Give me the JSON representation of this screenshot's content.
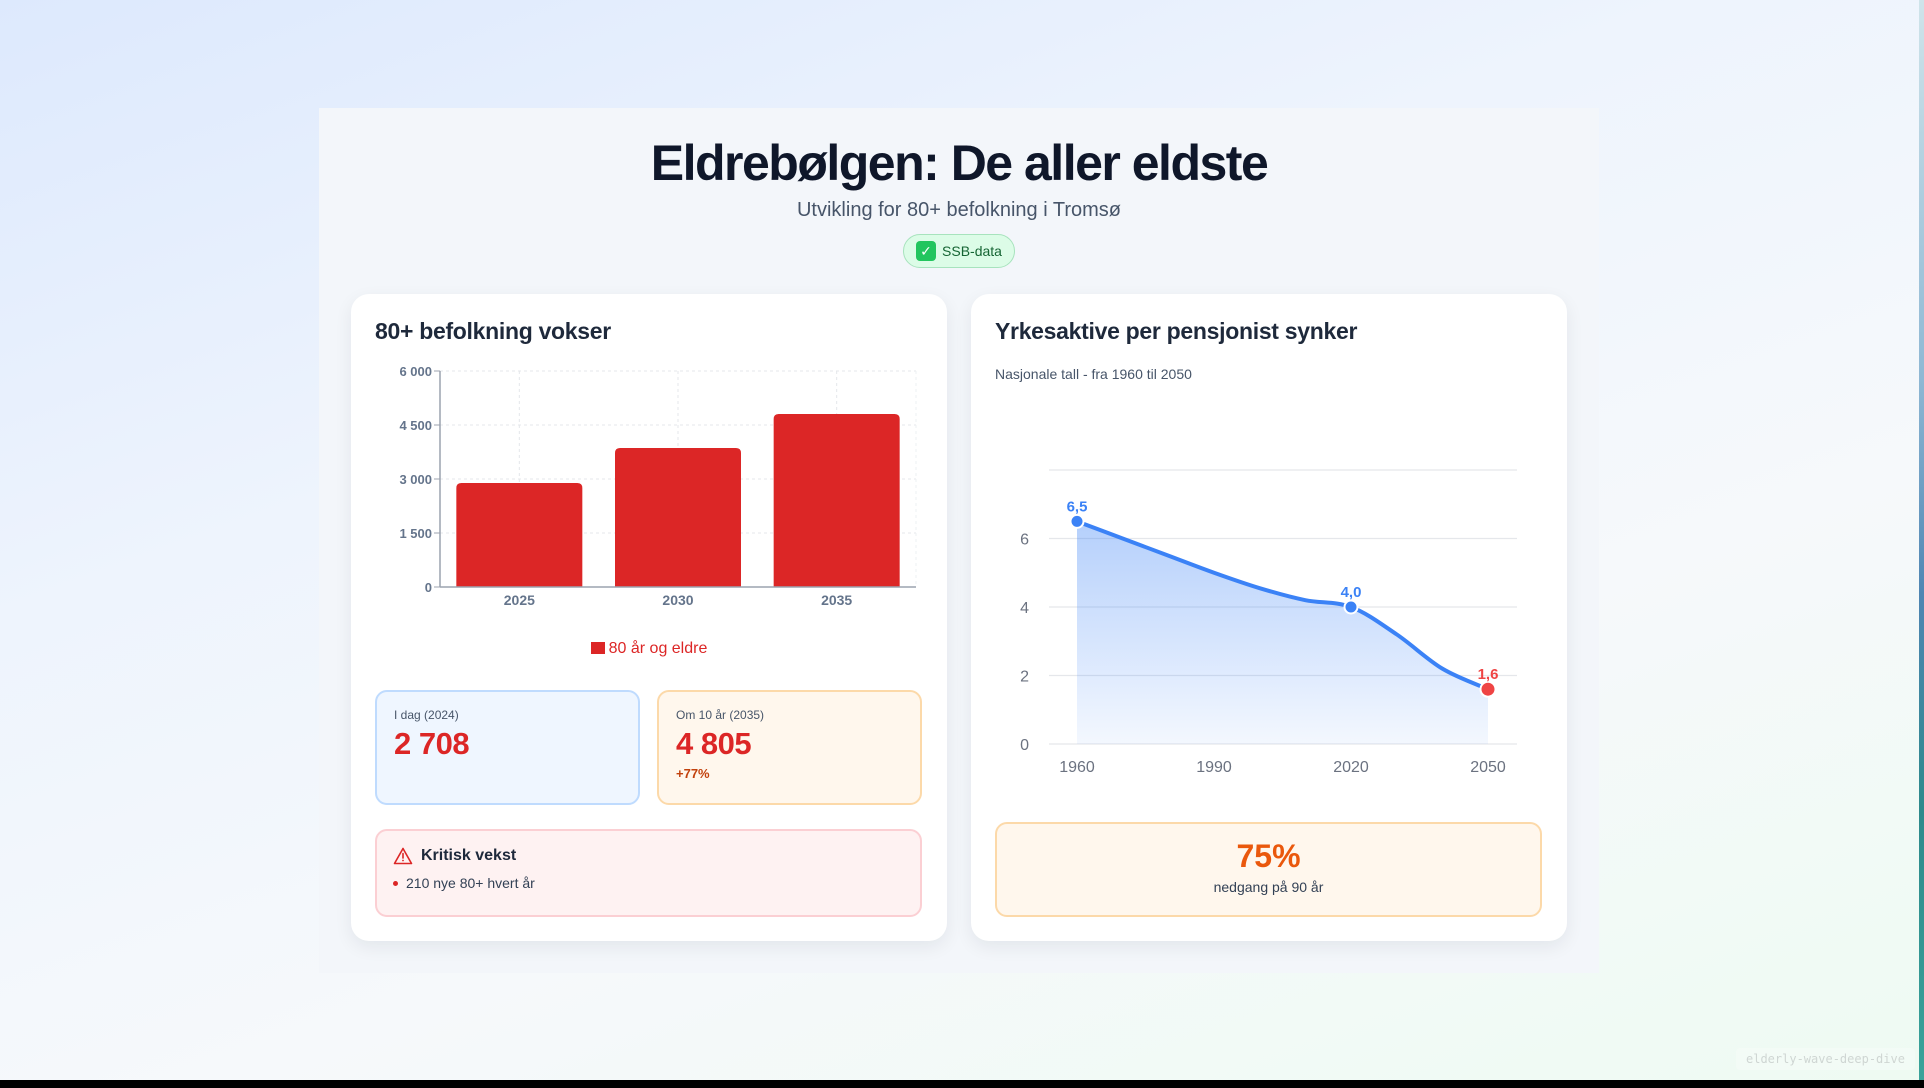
{
  "header": {
    "title": "Eldrebølgen: De aller eldste",
    "subtitle": "Utvikling for 80+ befolkning i Tromsø",
    "badge": "SSB-data",
    "badge_icon": "check-mark-icon"
  },
  "left_card": {
    "title": "80+ befolkning vokser",
    "legend": "80 år og eldre",
    "stats": [
      {
        "label": "I dag (2024)",
        "value": "2 708",
        "change": ""
      },
      {
        "label": "Om 10 år (2035)",
        "value": "4 805",
        "change": "+77%"
      }
    ],
    "alert": {
      "icon": "warning-triangle-icon",
      "title": "Kritisk vekst",
      "items": [
        "210 nye 80+ hvert år"
      ]
    }
  },
  "right_card": {
    "title": "Yrkesaktive per pensjonist synker",
    "note": "Nasjonale tall - fra 1960 til 2050",
    "summary": {
      "value": "75%",
      "label": "nedgang på 90 år"
    }
  },
  "watermark": "elderly-wave-deep-dive",
  "colors": {
    "bar": "#dc2626",
    "line": "#3b82f6",
    "highlight": "#ef4444",
    "accent_orange": "#ea580c"
  },
  "chart_data": [
    {
      "type": "bar",
      "title": "80+ befolkning vokser",
      "categories": [
        "2025",
        "2030",
        "2035"
      ],
      "series": [
        {
          "name": "80 år og eldre",
          "values": [
            2890,
            3860,
            4805
          ]
        }
      ],
      "yticks": [
        "0",
        "1 500",
        "3 000",
        "4 500",
        "6 000"
      ],
      "ylim": [
        0,
        6000
      ],
      "xlabel": "",
      "ylabel": "",
      "grid": true,
      "legend_position": "bottom"
    },
    {
      "type": "area",
      "title": "Yrkesaktive per pensjonist synker",
      "subtitle": "Nasjonale tall - fra 1960 til 2050",
      "x": [
        1960,
        1970,
        1980,
        1990,
        2000,
        2010,
        2020,
        2030,
        2040,
        2050
      ],
      "series": [
        {
          "name": "Yrkesaktive per pensjonist",
          "values": [
            6.5,
            6.0,
            5.5,
            5.0,
            4.55,
            4.2,
            4.0,
            3.2,
            2.2,
            1.6
          ]
        }
      ],
      "xticks": [
        "1960",
        "1990",
        "2020",
        "2050"
      ],
      "yticks": [
        "0",
        "2",
        "4",
        "6"
      ],
      "ylim": [
        0,
        8
      ],
      "annotations": [
        {
          "x": 1960,
          "label": "6,5"
        },
        {
          "x": 2020,
          "label": "4,0"
        },
        {
          "x": 2050,
          "label": "1,6"
        }
      ],
      "grid": true
    }
  ]
}
